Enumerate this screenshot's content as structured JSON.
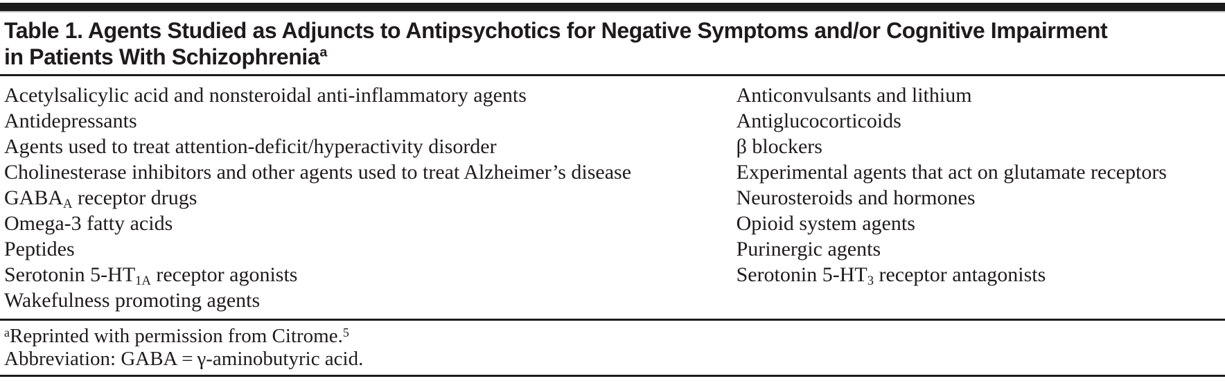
{
  "colors": {
    "text": "#1e1b1c",
    "rule": "#1e1b1c",
    "background": "#ffffff"
  },
  "table": {
    "title_line1": "Table 1. Agents Studied as Adjuncts to Antipsychotics for Negative Symptoms and/or Cognitive Impairment",
    "title_line2": "in Patients With Schizophrenia",
    "title_superscript": "a",
    "columns": {
      "left": [
        {
          "segments": [
            {
              "text": "Acetylsalicylic acid and nonsteroidal anti-inflammatory agents",
              "format": "normal"
            }
          ]
        },
        {
          "segments": [
            {
              "text": "Antidepressants",
              "format": "normal"
            }
          ]
        },
        {
          "segments": [
            {
              "text": "Agents used to treat attention-deficit/hyperactivity disorder",
              "format": "normal"
            }
          ]
        },
        {
          "segments": [
            {
              "text": "Cholinesterase inhibitors and other agents used to treat Alzheimer’s disease",
              "format": "normal"
            }
          ]
        },
        {
          "segments": [
            {
              "text": "GABA",
              "format": "normal"
            },
            {
              "text": "A",
              "format": "sub"
            },
            {
              "text": " receptor drugs",
              "format": "normal"
            }
          ]
        },
        {
          "segments": [
            {
              "text": "Omega-3 fatty acids",
              "format": "normal"
            }
          ]
        },
        {
          "segments": [
            {
              "text": "Peptides",
              "format": "normal"
            }
          ]
        },
        {
          "segments": [
            {
              "text": "Serotonin 5-HT",
              "format": "normal"
            },
            {
              "text": "1A",
              "format": "sub"
            },
            {
              "text": " receptor agonists",
              "format": "normal"
            }
          ]
        },
        {
          "segments": [
            {
              "text": "Wakefulness promoting agents",
              "format": "normal"
            }
          ]
        }
      ],
      "right": [
        {
          "segments": [
            {
              "text": "Anticonvulsants and lithium",
              "format": "normal"
            }
          ]
        },
        {
          "segments": [
            {
              "text": "Antiglucocorticoids",
              "format": "normal"
            }
          ]
        },
        {
          "segments": [
            {
              "text": "β blockers",
              "format": "normal"
            }
          ]
        },
        {
          "segments": [
            {
              "text": "Experimental agents that act on glutamate receptors",
              "format": "normal"
            }
          ]
        },
        {
          "segments": [
            {
              "text": "Neurosteroids and hormones",
              "format": "normal"
            }
          ]
        },
        {
          "segments": [
            {
              "text": "Opioid system agents",
              "format": "normal"
            }
          ]
        },
        {
          "segments": [
            {
              "text": "Purinergic agents",
              "format": "normal"
            }
          ]
        },
        {
          "segments": [
            {
              "text": "Serotonin 5-HT",
              "format": "normal"
            },
            {
              "text": "3",
              "format": "sub"
            },
            {
              "text": " receptor antagonists",
              "format": "normal"
            }
          ]
        }
      ]
    },
    "footnotes": [
      {
        "segments": [
          {
            "text": "a",
            "format": "sup"
          },
          {
            "text": "Reprinted with permission from Citrome.",
            "format": "normal"
          },
          {
            "text": "5",
            "format": "sup"
          }
        ]
      },
      {
        "segments": [
          {
            "text": "Abbreviation: GABA = γ-aminobutyric acid.",
            "format": "normal"
          }
        ]
      }
    ]
  }
}
